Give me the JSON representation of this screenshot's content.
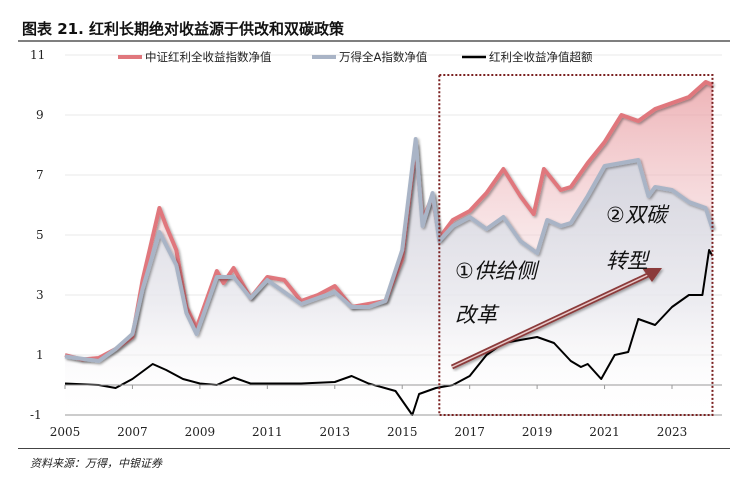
{
  "title": "图表 21. 红利长期绝对收益源于供改和双碳政策",
  "source": "资料来源：万得，中银证券",
  "chart_data": {
    "type": "line",
    "title": "图表 21. 红利长期绝对收益源于供改和双碳政策",
    "xlim": [
      2005,
      2024.2
    ],
    "ylim": [
      -1,
      11
    ],
    "x_ticks": [
      "2005",
      "2007",
      "2009",
      "2011",
      "2013",
      "2015",
      "2017",
      "2019",
      "2021",
      "2023"
    ],
    "y_ticks": [
      "11",
      "9",
      "7",
      "5",
      "3",
      "1",
      "-1"
    ],
    "legend_position": "top",
    "colors": {
      "dividend": "#e0777d",
      "winda": "#a9b4c6",
      "excess": "#000000",
      "box": "#7a1f1f",
      "arrow": "#8b3a3a"
    },
    "series": [
      {
        "name": "中证红利全收益指数净值",
        "points": [
          [
            2005,
            1.0
          ],
          [
            2005.5,
            0.85
          ],
          [
            2006,
            0.9
          ],
          [
            2006.5,
            1.2
          ],
          [
            2007,
            1.6
          ],
          [
            2007.3,
            3.5
          ],
          [
            2007.8,
            5.9
          ],
          [
            2008,
            5.3
          ],
          [
            2008.3,
            4.5
          ],
          [
            2008.6,
            2.6
          ],
          [
            2008.9,
            1.9
          ],
          [
            2009.5,
            3.8
          ],
          [
            2009.7,
            3.4
          ],
          [
            2010,
            3.9
          ],
          [
            2010.5,
            2.9
          ],
          [
            2011,
            3.6
          ],
          [
            2011.5,
            3.5
          ],
          [
            2012,
            2.8
          ],
          [
            2012.5,
            3.0
          ],
          [
            2013,
            3.3
          ],
          [
            2013.5,
            2.6
          ],
          [
            2014,
            2.7
          ],
          [
            2014.5,
            2.8
          ],
          [
            2015,
            4.2
          ],
          [
            2015.4,
            8.0
          ],
          [
            2015.6,
            5.5
          ],
          [
            2015.9,
            6.3
          ],
          [
            2016.1,
            4.9
          ],
          [
            2016.5,
            5.5
          ],
          [
            2017,
            5.8
          ],
          [
            2017.5,
            6.4
          ],
          [
            2018,
            7.2
          ],
          [
            2018.5,
            6.3
          ],
          [
            2018.9,
            5.7
          ],
          [
            2019.2,
            7.2
          ],
          [
            2019.7,
            6.5
          ],
          [
            2020,
            6.6
          ],
          [
            2020.5,
            7.4
          ],
          [
            2021,
            8.1
          ],
          [
            2021.5,
            9.0
          ],
          [
            2022,
            8.8
          ],
          [
            2022.5,
            9.2
          ],
          [
            2023,
            9.4
          ],
          [
            2023.5,
            9.6
          ],
          [
            2024,
            10.1
          ],
          [
            2024.2,
            10.0
          ]
        ]
      },
      {
        "name": "万得全A指数净值",
        "points": [
          [
            2005,
            0.95
          ],
          [
            2006,
            0.8
          ],
          [
            2006.5,
            1.2
          ],
          [
            2007,
            1.7
          ],
          [
            2007.3,
            3.2
          ],
          [
            2007.8,
            5.1
          ],
          [
            2008.3,
            4.0
          ],
          [
            2008.6,
            2.4
          ],
          [
            2008.9,
            1.7
          ],
          [
            2009.5,
            3.6
          ],
          [
            2010,
            3.6
          ],
          [
            2010.5,
            2.9
          ],
          [
            2011,
            3.5
          ],
          [
            2011.5,
            3.1
          ],
          [
            2012,
            2.7
          ],
          [
            2012.5,
            2.9
          ],
          [
            2013,
            3.1
          ],
          [
            2013.5,
            2.6
          ],
          [
            2014,
            2.6
          ],
          [
            2014.5,
            2.8
          ],
          [
            2015,
            4.5
          ],
          [
            2015.4,
            8.2
          ],
          [
            2015.6,
            5.3
          ],
          [
            2015.9,
            6.4
          ],
          [
            2016.1,
            4.8
          ],
          [
            2016.5,
            5.3
          ],
          [
            2017,
            5.6
          ],
          [
            2017.5,
            5.2
          ],
          [
            2018,
            5.6
          ],
          [
            2018.5,
            4.8
          ],
          [
            2019,
            4.4
          ],
          [
            2019.3,
            5.5
          ],
          [
            2019.7,
            5.3
          ],
          [
            2020,
            5.4
          ],
          [
            2020.5,
            6.3
          ],
          [
            2021,
            7.3
          ],
          [
            2021.5,
            7.4
          ],
          [
            2022,
            7.5
          ],
          [
            2022.3,
            6.3
          ],
          [
            2022.5,
            6.6
          ],
          [
            2023,
            6.5
          ],
          [
            2023.5,
            6.1
          ],
          [
            2024,
            5.9
          ],
          [
            2024.2,
            5.2
          ]
        ]
      },
      {
        "name": "红利全收益净值超额",
        "points": [
          [
            2005,
            0.05
          ],
          [
            2006,
            0.0
          ],
          [
            2006.5,
            -0.1
          ],
          [
            2007,
            0.2
          ],
          [
            2007.6,
            0.7
          ],
          [
            2008,
            0.5
          ],
          [
            2008.5,
            0.2
          ],
          [
            2009,
            0.05
          ],
          [
            2009.5,
            0.0
          ],
          [
            2010,
            0.25
          ],
          [
            2010.5,
            0.05
          ],
          [
            2011,
            0.05
          ],
          [
            2012,
            0.05
          ],
          [
            2013,
            0.1
          ],
          [
            2013.5,
            0.3
          ],
          [
            2014,
            0.05
          ],
          [
            2014.8,
            -0.2
          ],
          [
            2015.3,
            -1.0
          ],
          [
            2015.5,
            -0.3
          ],
          [
            2016,
            -0.1
          ],
          [
            2016.5,
            0.0
          ],
          [
            2017,
            0.3
          ],
          [
            2017.5,
            1.0
          ],
          [
            2018,
            1.4
          ],
          [
            2018.5,
            1.5
          ],
          [
            2019,
            1.6
          ],
          [
            2019.5,
            1.4
          ],
          [
            2020,
            0.8
          ],
          [
            2020.3,
            0.6
          ],
          [
            2020.5,
            0.7
          ],
          [
            2020.9,
            0.2
          ],
          [
            2021.3,
            1.0
          ],
          [
            2021.7,
            1.1
          ],
          [
            2022,
            2.2
          ],
          [
            2022.5,
            2.0
          ],
          [
            2023,
            2.6
          ],
          [
            2023.5,
            3.0
          ],
          [
            2023.9,
            3.0
          ],
          [
            2024.1,
            4.5
          ],
          [
            2024.2,
            4.3
          ]
        ]
      }
    ],
    "annotations": {
      "phase1_line1": "①供给侧",
      "phase1_line2": "改革",
      "phase2_line1": "②双碳",
      "phase2_line2": "转型",
      "highlight_range": [
        2016.1,
        2024.2
      ]
    }
  }
}
